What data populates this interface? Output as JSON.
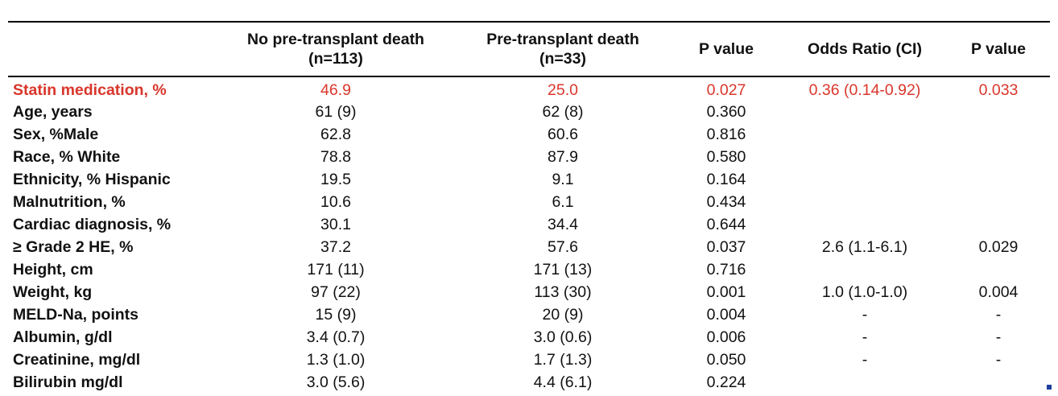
{
  "table": {
    "headers": [
      {
        "line1": "",
        "line2": ""
      },
      {
        "line1": "No pre-transplant death",
        "line2": "(n=113)"
      },
      {
        "line1": "Pre-transplant death",
        "line2": "(n=33)"
      },
      {
        "line1": "P value",
        "line2": ""
      },
      {
        "line1": "Odds Ratio (CI)",
        "line2": ""
      },
      {
        "line1": "P value",
        "line2": ""
      }
    ],
    "rows": [
      {
        "variable": "Statin medication, %",
        "no_death": "46.9",
        "death": "25.0",
        "p_value": "0.027",
        "odds_ratio": "0.36 (0.14-0.92)",
        "p_value_or": "0.033"
      },
      {
        "variable": "Age, years",
        "no_death": "61 (9)",
        "death": "62 (8)",
        "p_value": "0.360",
        "odds_ratio": "",
        "p_value_or": ""
      },
      {
        "variable": "Sex, %Male",
        "no_death": "62.8",
        "death": "60.6",
        "p_value": "0.816",
        "odds_ratio": "",
        "p_value_or": ""
      },
      {
        "variable": "Race, % White",
        "no_death": "78.8",
        "death": "87.9",
        "p_value": "0.580",
        "odds_ratio": "",
        "p_value_or": ""
      },
      {
        "variable": "Ethnicity, % Hispanic",
        "no_death": "19.5",
        "death": "9.1",
        "p_value": "0.164",
        "odds_ratio": "",
        "p_value_or": ""
      },
      {
        "variable": "Malnutrition, %",
        "no_death": "10.6",
        "death": "6.1",
        "p_value": "0.434",
        "odds_ratio": "",
        "p_value_or": ""
      },
      {
        "variable": "Cardiac diagnosis, %",
        "no_death": "30.1",
        "death": "34.4",
        "p_value": "0.644",
        "odds_ratio": "",
        "p_value_or": ""
      },
      {
        "variable": "≥ Grade 2 HE, %",
        "no_death": "37.2",
        "death": "57.6",
        "p_value": "0.037",
        "odds_ratio": "2.6 (1.1-6.1)",
        "p_value_or": "0.029"
      },
      {
        "variable": "Height, cm",
        "no_death": "171 (11)",
        "death": "171 (13)",
        "p_value": "0.716",
        "odds_ratio": "",
        "p_value_or": ""
      },
      {
        "variable": "Weight, kg",
        "no_death": "97 (22)",
        "death": "113 (30)",
        "p_value": "0.001",
        "odds_ratio": "1.0 (1.0-1.0)",
        "p_value_or": "0.004"
      },
      {
        "variable": "MELD-Na, points",
        "no_death": "15 (9)",
        "death": "20 (9)",
        "p_value": "0.004",
        "odds_ratio": "-",
        "p_value_or": "-"
      },
      {
        "variable": "Albumin, g/dl",
        "no_death": "3.4 (0.7)",
        "death": "3.0 (0.6)",
        "p_value": "0.006",
        "odds_ratio": "-",
        "p_value_or": "-"
      },
      {
        "variable": "Creatinine, mg/dl",
        "no_death": "1.3 (1.0)",
        "death": "1.7 (1.3)",
        "p_value": "0.050",
        "odds_ratio": "-",
        "p_value_or": "-"
      },
      {
        "variable": "Bilirubin mg/dl",
        "no_death": "3.0 (5.6)",
        "death": "4.4 (6.1)",
        "p_value": "0.224",
        "odds_ratio": "",
        "p_value_or": ""
      }
    ]
  },
  "colors": {
    "highlight": "#d9362b",
    "text": "#111111",
    "corner_mark": "#1f3f9c"
  }
}
